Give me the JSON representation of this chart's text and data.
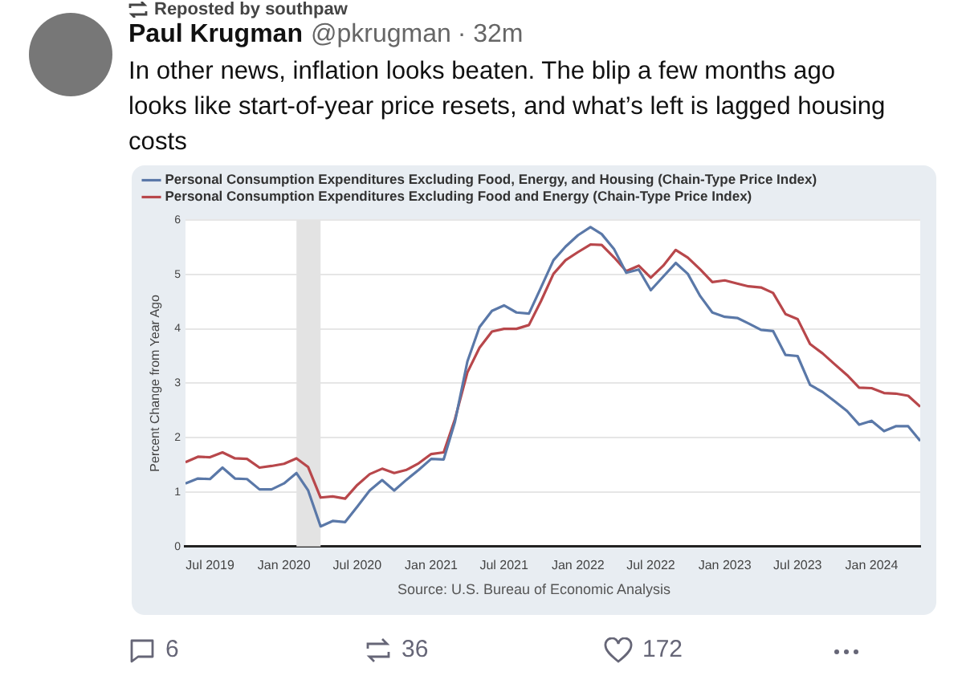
{
  "chart_data": [
    {
      "type": "other",
      "title": "Paul Krugman",
      "subtitle": "Reposted by southpaw",
      "annotations": [
        "@pkrugman",
        "· 32m",
        "In other news, inflation looks beaten. The blip a few months ago looks like start-of-year price resets, and what’s left is lagged housing costs",
        "6",
        "36",
        "172"
      ]
    },
    {
      "type": "line",
      "ylabel": "Percent Change from Year Ago",
      "legend": "top left",
      "grid": "y",
      "marker": "none",
      "xlim": [
        "2019-05",
        "2024-05"
      ],
      "xticks": [
        {
          "value": "2019-07",
          "label": "Jul 2019"
        },
        {
          "value": "2020-01",
          "label": "Jan 2020"
        },
        {
          "value": "2020-07",
          "label": "Jul 2020"
        },
        {
          "value": "2021-01",
          "label": "Jan 2021"
        },
        {
          "value": "2021-07",
          "label": "Jul 2021"
        },
        {
          "value": "2022-01",
          "label": "Jan 2022"
        },
        {
          "value": "2022-07",
          "label": "Jul 2022"
        },
        {
          "value": "2023-01",
          "label": "Jan 2023"
        },
        {
          "value": "2023-07",
          "label": "Jul 2023"
        },
        {
          "value": "2024-01",
          "label": "Jan 2024"
        }
      ],
      "ylim": [
        0,
        6
      ],
      "yticks": [
        0,
        1,
        2,
        3,
        4,
        5,
        6
      ],
      "bands": [
        {
          "axis": "x",
          "from": "2020-02",
          "to": "2020-04",
          "color": "#e3e3e3"
        }
      ],
      "annotations": [
        "Source: U.S. Bureau of Economic Analysis"
      ],
      "x": [
        "2019-05",
        "2019-06",
        "2019-07",
        "2019-08",
        "2019-09",
        "2019-10",
        "2019-11",
        "2019-12",
        "2020-01",
        "2020-02",
        "2020-03",
        "2020-04",
        "2020-05",
        "2020-06",
        "2020-07",
        "2020-08",
        "2020-09",
        "2020-10",
        "2020-11",
        "2020-12",
        "2021-01",
        "2021-02",
        "2021-03",
        "2021-04",
        "2021-05",
        "2021-06",
        "2021-07",
        "2021-08",
        "2021-09",
        "2021-10",
        "2021-11",
        "2021-12",
        "2022-01",
        "2022-02",
        "2022-03",
        "2022-04",
        "2022-05",
        "2022-06",
        "2022-07",
        "2022-08",
        "2022-09",
        "2022-10",
        "2022-11",
        "2022-12",
        "2023-01",
        "2023-02",
        "2023-03",
        "2023-04",
        "2023-05",
        "2023-06",
        "2023-07",
        "2023-08",
        "2023-09",
        "2023-10",
        "2023-11",
        "2023-12",
        "2024-01",
        "2024-02",
        "2024-03",
        "2024-04",
        "2024-05"
      ],
      "series": [
        {
          "name": "Personal Consumption Expenditures Excluding Food, Energy, and Housing (Chain-Type Price Index)",
          "color": "#5a78a8",
          "values": [
            1.16,
            1.25,
            1.24,
            1.45,
            1.25,
            1.24,
            1.05,
            1.05,
            1.16,
            1.35,
            1.03,
            0.37,
            0.47,
            0.45,
            0.73,
            1.03,
            1.22,
            1.03,
            1.23,
            1.41,
            1.61,
            1.6,
            2.29,
            3.4,
            4.03,
            4.33,
            4.43,
            4.3,
            4.28,
            4.76,
            5.26,
            5.51,
            5.72,
            5.87,
            5.74,
            5.46,
            5.03,
            5.09,
            4.71,
            4.96,
            5.21,
            5.01,
            4.6,
            4.3,
            4.22,
            4.2,
            4.1,
            3.98,
            3.96,
            3.52,
            3.5,
            2.97,
            2.84,
            2.67,
            2.49,
            2.24,
            2.31,
            2.12,
            2.21,
            2.21,
            1.94
          ]
        },
        {
          "name": "Personal Consumption Expenditures Excluding Food and Energy (Chain-Type Price Index)",
          "color": "#b8474b",
          "values": [
            1.55,
            1.65,
            1.64,
            1.73,
            1.62,
            1.61,
            1.45,
            1.48,
            1.52,
            1.62,
            1.46,
            0.9,
            0.92,
            0.88,
            1.13,
            1.33,
            1.43,
            1.35,
            1.41,
            1.53,
            1.7,
            1.73,
            2.34,
            3.2,
            3.65,
            3.95,
            4.0,
            4.0,
            4.07,
            4.51,
            5.01,
            5.26,
            5.41,
            5.55,
            5.54,
            5.31,
            5.06,
            5.16,
            4.94,
            5.16,
            5.45,
            5.31,
            5.09,
            4.86,
            4.89,
            4.83,
            4.78,
            4.76,
            4.66,
            4.27,
            4.18,
            3.72,
            3.55,
            3.35,
            3.15,
            2.92,
            2.91,
            2.82,
            2.81,
            2.77,
            2.57
          ]
        }
      ]
    }
  ]
}
